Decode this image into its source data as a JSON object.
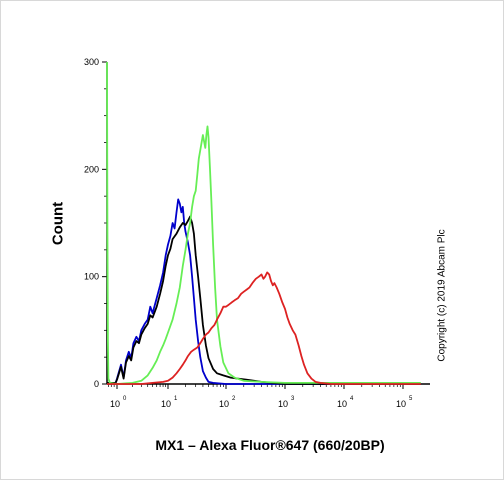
{
  "chart_data": {
    "type": "line",
    "xlabel": "MX1 – Alexa Fluor®647 (660/20BP)",
    "ylabel": "Count",
    "x_scale": "log",
    "x_ticks": [
      {
        "base": "10",
        "exp": "0"
      },
      {
        "base": "10",
        "exp": "1"
      },
      {
        "base": "10",
        "exp": "2"
      },
      {
        "base": "10",
        "exp": "3"
      },
      {
        "base": "10",
        "exp": "4"
      },
      {
        "base": "10",
        "exp": "5"
      }
    ],
    "y_ticks": [
      "0",
      "100",
      "200",
      "300"
    ],
    "ylim": [
      0,
      300
    ],
    "grid": false,
    "series": [
      {
        "color": "#0000cc",
        "points": [
          [
            0.3,
            1
          ],
          [
            0.6,
            1
          ],
          [
            0.9,
            1
          ],
          [
            1.0,
            5
          ],
          [
            1.2,
            18
          ],
          [
            1.35,
            6
          ],
          [
            1.5,
            22
          ],
          [
            1.7,
            30
          ],
          [
            1.9,
            24
          ],
          [
            2.1,
            38
          ],
          [
            2.4,
            44
          ],
          [
            2.7,
            40
          ],
          [
            3,
            50
          ],
          [
            3.5,
            56
          ],
          [
            4,
            60
          ],
          [
            4.5,
            72
          ],
          [
            5,
            66
          ],
          [
            6,
            80
          ],
          [
            7,
            92
          ],
          [
            8,
            104
          ],
          [
            9,
            120
          ],
          [
            10,
            130
          ],
          [
            11,
            138
          ],
          [
            12,
            150
          ],
          [
            13,
            145
          ],
          [
            14,
            160
          ],
          [
            15,
            172
          ],
          [
            16,
            168
          ],
          [
            17,
            160
          ],
          [
            18,
            165
          ],
          [
            19,
            150
          ],
          [
            20,
            142
          ],
          [
            22,
            132
          ],
          [
            24,
            120
          ],
          [
            26,
            100
          ],
          [
            28,
            80
          ],
          [
            30,
            60
          ],
          [
            33,
            40
          ],
          [
            36,
            25
          ],
          [
            40,
            12
          ],
          [
            45,
            6
          ],
          [
            50,
            2
          ],
          [
            60,
            1
          ],
          [
            100,
            0
          ],
          [
            1000,
            0
          ],
          [
            200000,
            0
          ]
        ]
      },
      {
        "color": "#000000",
        "points": [
          [
            0.3,
            1
          ],
          [
            0.6,
            1
          ],
          [
            0.9,
            1
          ],
          [
            1.0,
            4
          ],
          [
            1.2,
            16
          ],
          [
            1.35,
            5
          ],
          [
            1.5,
            20
          ],
          [
            1.7,
            26
          ],
          [
            1.9,
            22
          ],
          [
            2.1,
            34
          ],
          [
            2.4,
            40
          ],
          [
            2.7,
            38
          ],
          [
            3,
            46
          ],
          [
            3.5,
            52
          ],
          [
            4,
            56
          ],
          [
            4.5,
            64
          ],
          [
            5,
            62
          ],
          [
            6,
            72
          ],
          [
            7,
            84
          ],
          [
            8,
            96
          ],
          [
            9,
            110
          ],
          [
            10,
            120
          ],
          [
            11,
            126
          ],
          [
            12,
            135
          ],
          [
            14,
            140
          ],
          [
            16,
            146
          ],
          [
            18,
            150
          ],
          [
            20,
            148
          ],
          [
            22,
            152
          ],
          [
            24,
            156
          ],
          [
            26,
            150
          ],
          [
            28,
            140
          ],
          [
            30,
            120
          ],
          [
            33,
            100
          ],
          [
            36,
            80
          ],
          [
            40,
            55
          ],
          [
            45,
            36
          ],
          [
            50,
            24
          ],
          [
            60,
            14
          ],
          [
            70,
            10
          ],
          [
            90,
            8
          ],
          [
            120,
            6
          ],
          [
            160,
            5
          ],
          [
            220,
            4
          ],
          [
            300,
            3
          ],
          [
            400,
            2
          ],
          [
            600,
            1
          ],
          [
            1000,
            0
          ],
          [
            200000,
            0
          ]
        ]
      },
      {
        "color": "#66ee55",
        "points": [
          [
            0.3,
            300
          ],
          [
            0.33,
            150
          ],
          [
            0.36,
            40
          ],
          [
            0.4,
            5
          ],
          [
            0.5,
            1
          ],
          [
            1.0,
            0
          ],
          [
            2.0,
            1
          ],
          [
            3.0,
            3
          ],
          [
            4.0,
            8
          ],
          [
            5,
            15
          ],
          [
            6,
            22
          ],
          [
            7,
            30
          ],
          [
            8,
            36
          ],
          [
            9,
            42
          ],
          [
            10,
            48
          ],
          [
            12,
            60
          ],
          [
            14,
            75
          ],
          [
            16,
            90
          ],
          [
            18,
            110
          ],
          [
            20,
            125
          ],
          [
            22,
            140
          ],
          [
            24,
            150
          ],
          [
            26,
            165
          ],
          [
            28,
            175
          ],
          [
            30,
            180
          ],
          [
            32,
            195
          ],
          [
            34,
            210
          ],
          [
            36,
            218
          ],
          [
            38,
            225
          ],
          [
            40,
            232
          ],
          [
            42,
            226
          ],
          [
            44,
            220
          ],
          [
            46,
            232
          ],
          [
            48,
            240
          ],
          [
            50,
            230
          ],
          [
            53,
            200
          ],
          [
            56,
            170
          ],
          [
            60,
            130
          ],
          [
            65,
            90
          ],
          [
            70,
            60
          ],
          [
            80,
            35
          ],
          [
            90,
            20
          ],
          [
            110,
            10
          ],
          [
            140,
            6
          ],
          [
            200,
            3
          ],
          [
            400,
            2
          ],
          [
            1000,
            1
          ],
          [
            10000,
            1
          ],
          [
            200000,
            1
          ]
        ]
      },
      {
        "color": "#dd2222",
        "points": [
          [
            0.3,
            0
          ],
          [
            1,
            0
          ],
          [
            3,
            0
          ],
          [
            5,
            1
          ],
          [
            8,
            2
          ],
          [
            10,
            3
          ],
          [
            12,
            6
          ],
          [
            14,
            10
          ],
          [
            16,
            14
          ],
          [
            18,
            18
          ],
          [
            20,
            22
          ],
          [
            22,
            26
          ],
          [
            25,
            30
          ],
          [
            28,
            32
          ],
          [
            32,
            34
          ],
          [
            36,
            38
          ],
          [
            40,
            42
          ],
          [
            45,
            46
          ],
          [
            50,
            48
          ],
          [
            56,
            52
          ],
          [
            63,
            55
          ],
          [
            70,
            60
          ],
          [
            80,
            66
          ],
          [
            90,
            72
          ],
          [
            100,
            72
          ],
          [
            112,
            74
          ],
          [
            125,
            76
          ],
          [
            140,
            78
          ],
          [
            160,
            80
          ],
          [
            180,
            84
          ],
          [
            200,
            86
          ],
          [
            225,
            88
          ],
          [
            250,
            90
          ],
          [
            280,
            94
          ],
          [
            320,
            98
          ],
          [
            360,
            100
          ],
          [
            400,
            102
          ],
          [
            430,
            98
          ],
          [
            460,
            100
          ],
          [
            500,
            104
          ],
          [
            540,
            102
          ],
          [
            580,
            96
          ],
          [
            620,
            92
          ],
          [
            660,
            94
          ],
          [
            720,
            90
          ],
          [
            800,
            84
          ],
          [
            900,
            76
          ],
          [
            1000,
            70
          ],
          [
            1100,
            62
          ],
          [
            1200,
            56
          ],
          [
            1350,
            50
          ],
          [
            1500,
            46
          ],
          [
            1700,
            36
          ],
          [
            1900,
            26
          ],
          [
            2100,
            18
          ],
          [
            2400,
            10
          ],
          [
            2800,
            5
          ],
          [
            3300,
            2
          ],
          [
            4000,
            1
          ],
          [
            6000,
            0
          ],
          [
            200000,
            0
          ]
        ]
      }
    ]
  },
  "copyright": "Copyright (c) 2019 Abcam Plc"
}
